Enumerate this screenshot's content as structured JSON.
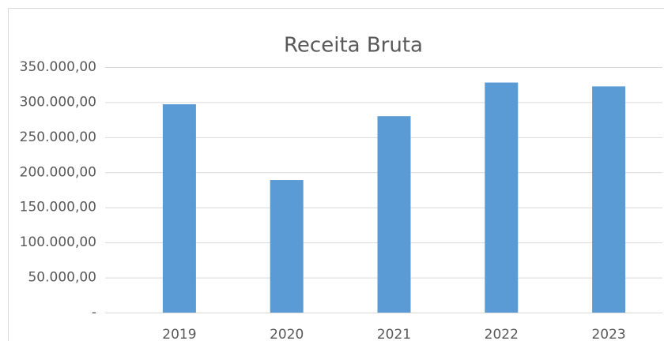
{
  "chart_data": {
    "type": "bar",
    "title": "Receita Bruta",
    "categories": [
      "2019",
      "2020",
      "2021",
      "2022",
      "2023"
    ],
    "values": [
      297000,
      189000,
      280000,
      328000,
      322500
    ],
    "color": "#5b9bd5",
    "ylim": [
      0,
      350000
    ],
    "yticks": [
      {
        "value": 0,
        "label": "-"
      },
      {
        "value": 50000,
        "label": "50.000,00"
      },
      {
        "value": 100000,
        "label": "100.000,00"
      },
      {
        "value": 150000,
        "label": "150.000,00"
      },
      {
        "value": 200000,
        "label": "200.000,00"
      },
      {
        "value": 250000,
        "label": "250.000,00"
      },
      {
        "value": 300000,
        "label": "300.000,00"
      },
      {
        "value": 350000,
        "label": "350.000,00"
      }
    ],
    "grid": true
  }
}
